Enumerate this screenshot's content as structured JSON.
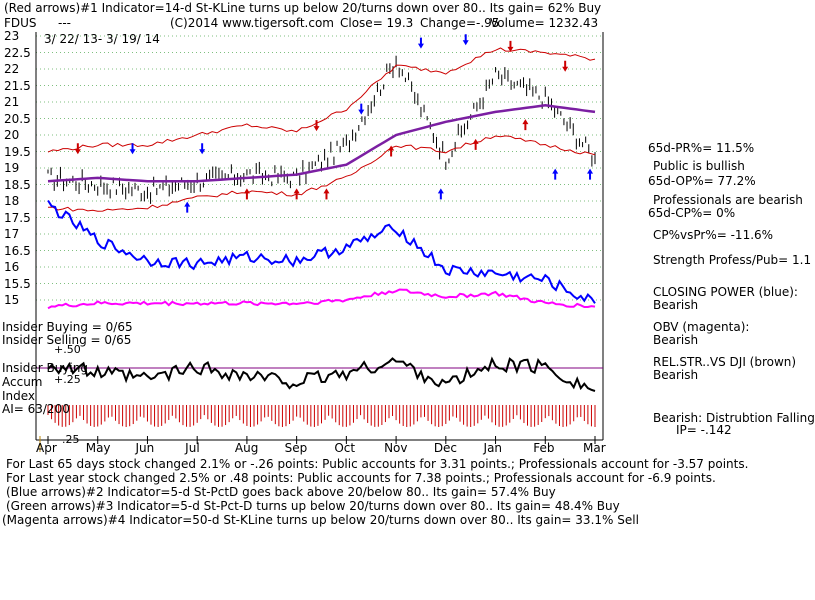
{
  "header": {
    "line1": "(Red arrows)#1 Indicator=14-d St-KLine turns up below 20/turns down over 80.. Its gain= 62% Buy",
    "ticker": "FDUS",
    "dashes": "---",
    "copyright": "(C)2014 www.tigersoft.com",
    "close": "Close=  19.3",
    "change": "Change=-.95",
    "volume": "Volume= 1232.43",
    "date_range": "3/ 22/ 13-  3/ 19/ 14"
  },
  "price_axis": {
    "ticks": [
      "23",
      "22.5",
      "22",
      "21.5",
      "21",
      "20.5",
      "20",
      "19.5",
      "19",
      "18.5",
      "18",
      "17.5",
      "17",
      "16.5",
      "16",
      "15.5",
      "15"
    ],
    "ylim": [
      15,
      23
    ]
  },
  "months": [
    "Apr",
    "May",
    "Jun",
    "Jul",
    "Aug",
    "Sep",
    "Oct",
    "Nov",
    "Dec",
    "Jan",
    "Feb",
    "Mar"
  ],
  "right_panel": [
    "65d-PR%= 11.5%",
    "Public is bullish",
    "65d-OP%= 77.2%",
    "Professionals are bearish",
    "65d-CP%= 0%",
    "CP%vsPr%= -11.6%",
    "Strength Profess/Pub= 1.1",
    "CLOSING POWER (blue):",
    "Bearish",
    "OBV (magenta):",
    "Bearish",
    "REL.STR..VS DJI (brown)",
    "Bearish",
    "Bearish: Distrubtion Falling",
    "IP= -.142"
  ],
  "indicator_labels": {
    "insider_buying": "Insider Buying = 0/65",
    "insider_selling": "Insider Selling = 0/65",
    "plus50": "+.50",
    "insider_buying2": "Insider Buying",
    "accum": "Accum",
    "plus25": "+.25",
    "index": "Index",
    "ai": "AI= 63/200",
    "minus25": "-.25"
  },
  "footer": [
    "For Last 65 days stock changed  2.1% or -.26 points:  Public accounts for  3.31 points.;  Professionals account for -3.57 points.",
    "For Last year stock changed  2.5% or  .48 points:  Public accounts for  7.38 points.;  Professionals account for -6.9 points.",
    "(Blue arrows)#2 Indicator=5-d St-PctD goes back above 20/below 80.. Its gain= 57.4% Buy",
    "(Green arrows)#3 Indicator=5-d St-Pct-D turns up below 20/turns down over 80.. Its gain= 48.4% Buy",
    "(Magenta arrows)#4 Indicator=50-d St-KLine turns up below 20/turns down over 80.. Its gain= 33.1% Sell"
  ],
  "colors": {
    "price": "#000000",
    "band": "#cc0000",
    "ma": "#7b1fa2",
    "closing_power": "#0000ff",
    "obv": "#ff00ff",
    "accum": "#000000",
    "grid": "#7fbf7f",
    "insider_line": "#800080"
  },
  "chart_data": {
    "type": "line",
    "title": "FDUS",
    "xlabel": "",
    "ylabel": "",
    "ylim": [
      15,
      23
    ],
    "x": [
      "Apr",
      "May",
      "Jun",
      "Jul",
      "Aug",
      "Sep",
      "Oct",
      "Nov",
      "Dec",
      "Jan",
      "Feb",
      "Mar"
    ],
    "series": [
      {
        "name": "price",
        "values": [
          18.7,
          18.5,
          18.3,
          18.6,
          18.8,
          18.7,
          19.7,
          22.3,
          19.3,
          21.8,
          21.1,
          19.3
        ]
      },
      {
        "name": "50-day MA",
        "values": [
          18.6,
          18.7,
          18.6,
          18.6,
          18.7,
          18.8,
          19.1,
          20.0,
          20.4,
          20.7,
          20.9,
          20.7
        ]
      },
      {
        "name": "upper band",
        "values": [
          19.5,
          19.7,
          19.7,
          20.0,
          20.3,
          20.1,
          20.8,
          22.1,
          21.9,
          22.6,
          22.5,
          22.3
        ]
      },
      {
        "name": "lower band",
        "values": [
          17.8,
          17.7,
          17.8,
          18.1,
          18.3,
          18.2,
          18.7,
          19.7,
          19.5,
          20.0,
          19.7,
          19.4
        ]
      },
      {
        "name": "CLOSING POWER (blue)",
        "values": [
          17.9,
          16.8,
          16.2,
          16.1,
          16.3,
          16.2,
          16.6,
          17.2,
          15.9,
          15.8,
          15.6,
          14.9
        ]
      },
      {
        "name": "OBV (magenta)",
        "values": [
          14.8,
          14.9,
          14.9,
          14.9,
          14.9,
          14.9,
          15.0,
          15.3,
          15.1,
          15.2,
          14.9,
          14.8
        ]
      }
    ]
  }
}
